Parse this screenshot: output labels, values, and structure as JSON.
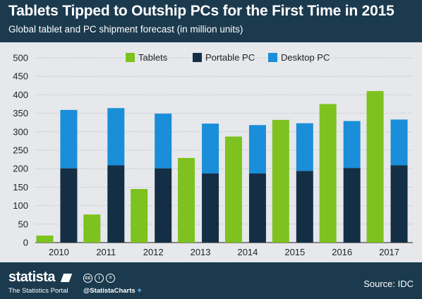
{
  "header": {
    "title": "Tablets Tipped to Outship PCs for the First Time in 2015",
    "subtitle": "Global tablet and PC shipment forecast (in million units)"
  },
  "footer": {
    "brand": "statista",
    "tagline": "The Statistics Portal",
    "handle": "@StatistaCharts",
    "source": "Source: IDC",
    "license_icons": [
      "cc-icon",
      "attribution-icon",
      "no-derivatives-icon"
    ]
  },
  "colors": {
    "tablets": "#7dc21e",
    "portable_pc": "#142f45",
    "desktop_pc": "#1a8ed8",
    "background": "#1b3a4e",
    "plot_background": "#e6e8eb"
  },
  "chart_data": {
    "type": "bar",
    "categories": [
      "2010",
      "2011",
      "2012",
      "2013",
      "2014",
      "2015",
      "2016",
      "2017"
    ],
    "series": [
      {
        "name": "Tablets",
        "stack": "tablets",
        "values": [
          19,
          76,
          145,
          229,
          287,
          332,
          375,
          410
        ]
      },
      {
        "name": "Portable PC",
        "stack": "pc",
        "values": [
          201,
          209,
          201,
          187,
          187,
          194,
          202,
          209
        ]
      },
      {
        "name": "Desktop PC",
        "stack": "pc",
        "values": [
          158,
          155,
          148,
          135,
          131,
          129,
          127,
          124
        ]
      }
    ],
    "ylim": [
      0,
      500
    ],
    "yticks": [
      "0",
      "50",
      "100",
      "150",
      "200",
      "250",
      "300",
      "350",
      "400",
      "450",
      "500"
    ],
    "grid": true,
    "legend_position": "top"
  }
}
